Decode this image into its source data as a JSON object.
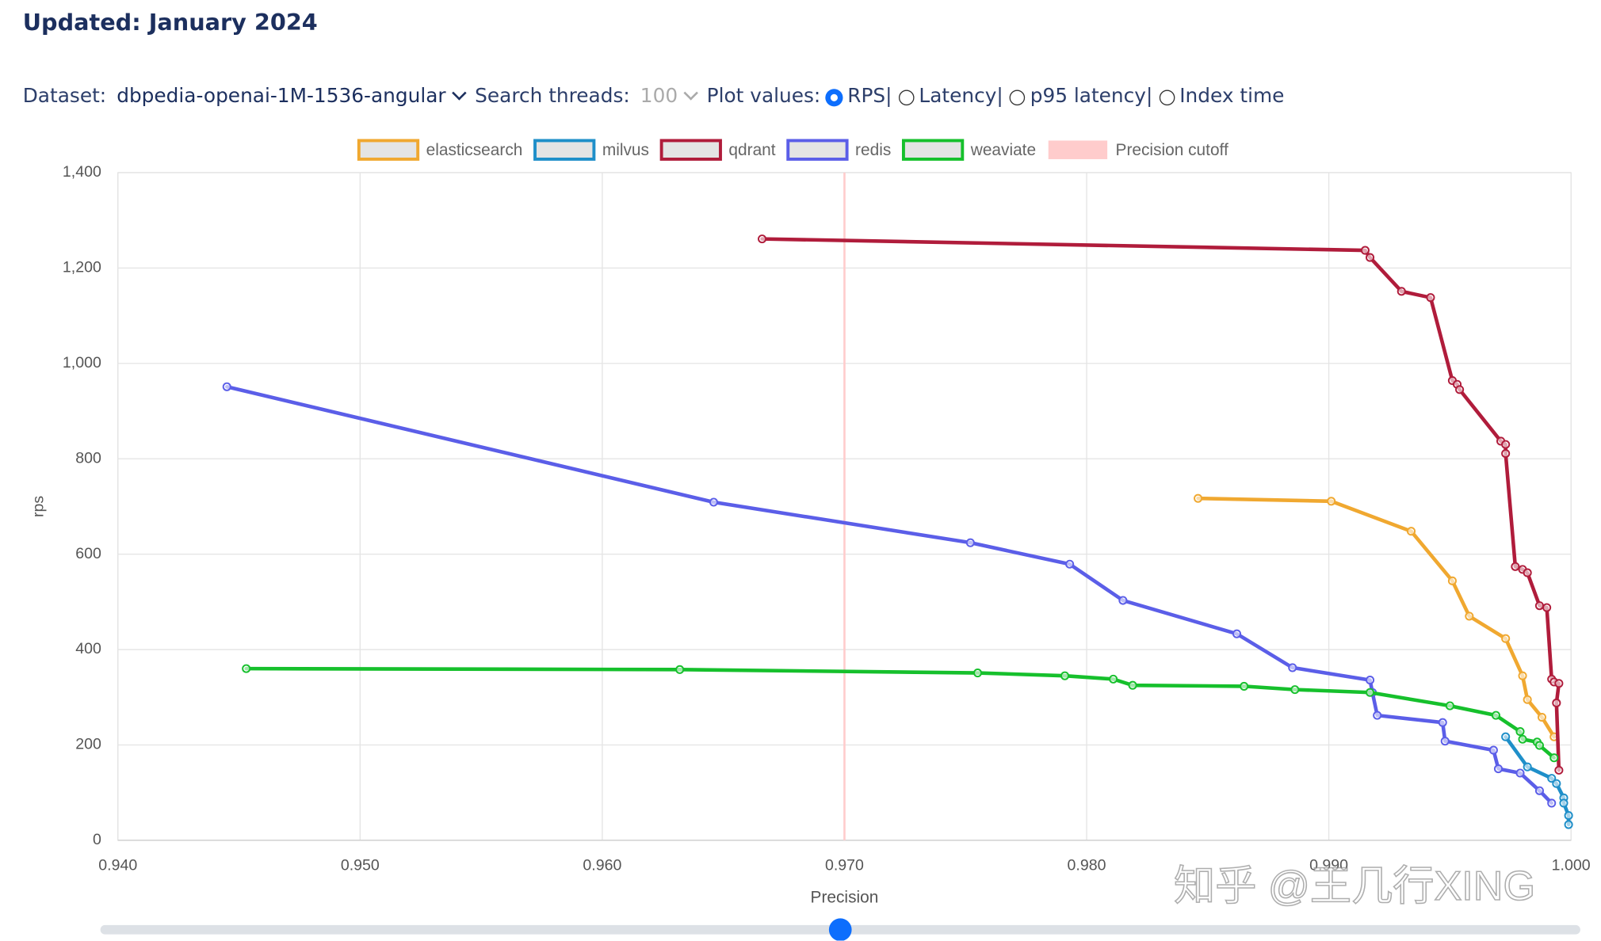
{
  "header": {
    "title": "Updated: January 2024"
  },
  "controls": {
    "dataset_label": "Dataset:",
    "dataset": "dbpedia-openai-1M-1536-angular",
    "threads_label": "Search threads:",
    "threads": "100",
    "plot_label": "Plot values:",
    "options": [
      "RPS|",
      "Latency|",
      "p95 latency|",
      "Index time"
    ],
    "selected": 0
  },
  "watermark": "知乎 @王几行XING",
  "chart_data": {
    "type": "line",
    "x_label": "Precision",
    "y_label": "rps",
    "xlim": [
      0.94,
      1.0
    ],
    "xticks": [
      {
        "value": 0.94,
        "label": "0.940"
      },
      {
        "value": 0.95,
        "label": "0.950"
      },
      {
        "value": 0.96,
        "label": "0.960"
      },
      {
        "value": 0.97,
        "label": "0.970"
      },
      {
        "value": 0.98,
        "label": "0.980"
      },
      {
        "value": 0.99,
        "label": "0.990"
      },
      {
        "value": 1.0,
        "label": "1.000"
      }
    ],
    "ylim": [
      0,
      1400
    ],
    "yticks": [
      0,
      200,
      400,
      600,
      800,
      {
        "value": 1000,
        "label": "1,000"
      },
      {
        "value": 1200,
        "label": "1,200"
      },
      {
        "value": 1400,
        "label": "1,400"
      }
    ],
    "grid": true,
    "cutoff": {
      "name": "Precision cutoff",
      "value": 0.97,
      "color": "#ffcccc"
    },
    "series": [
      {
        "name": "elasticsearch",
        "color": "#f0a830",
        "x": [
          0.9846,
          0.9901,
          0.9934,
          0.9951,
          0.9958,
          0.9973,
          0.998,
          0.9982,
          0.9988,
          0.9993
        ],
        "values": [
          717,
          711,
          648,
          544,
          470,
          423,
          345,
          295,
          258,
          217
        ]
      },
      {
        "name": "milvus",
        "color": "#1f8fc9",
        "x": [
          0.9973,
          0.9982,
          0.9992,
          0.9994,
          0.9997,
          0.9997,
          0.9999,
          0.9999
        ],
        "values": [
          217,
          154,
          130,
          119,
          89,
          78,
          52,
          33
        ]
      },
      {
        "name": "qdrant",
        "color": "#b01c3b",
        "x": [
          0.9666,
          0.9915,
          0.9917,
          0.993,
          0.9942,
          0.9951,
          0.9953,
          0.9954,
          0.9971,
          0.9973,
          0.9973,
          0.9977,
          0.998,
          0.9982,
          0.9987,
          0.999,
          0.9992,
          0.9993,
          0.9995,
          0.9994,
          0.9995
        ],
        "values": [
          1261,
          1237,
          1222,
          1151,
          1138,
          964,
          956,
          945,
          837,
          830,
          811,
          574,
          568,
          561,
          492,
          488,
          338,
          332,
          329,
          288,
          147
        ]
      },
      {
        "name": "redis",
        "color": "#5b5ee8",
        "x": [
          0.9445,
          0.9646,
          0.9752,
          0.9793,
          0.9815,
          0.9862,
          0.9885,
          0.9917,
          0.9918,
          0.992,
          0.9947,
          0.9948,
          0.9968,
          0.997,
          0.9979,
          0.9987,
          0.9992
        ],
        "values": [
          951,
          709,
          624,
          579,
          503,
          433,
          362,
          336,
          310,
          262,
          247,
          208,
          189,
          150,
          141,
          104,
          78
        ]
      },
      {
        "name": "weaviate",
        "color": "#16c02c",
        "x": [
          0.9453,
          0.9632,
          0.9755,
          0.9791,
          0.9811,
          0.9819,
          0.9865,
          0.9886,
          0.9917,
          0.995,
          0.9969,
          0.9979,
          0.998,
          0.9986,
          0.9987,
          0.9993
        ],
        "values": [
          360,
          358,
          351,
          345,
          338,
          325,
          323,
          316,
          310,
          282,
          262,
          228,
          212,
          206,
          199,
          173
        ]
      }
    ]
  }
}
